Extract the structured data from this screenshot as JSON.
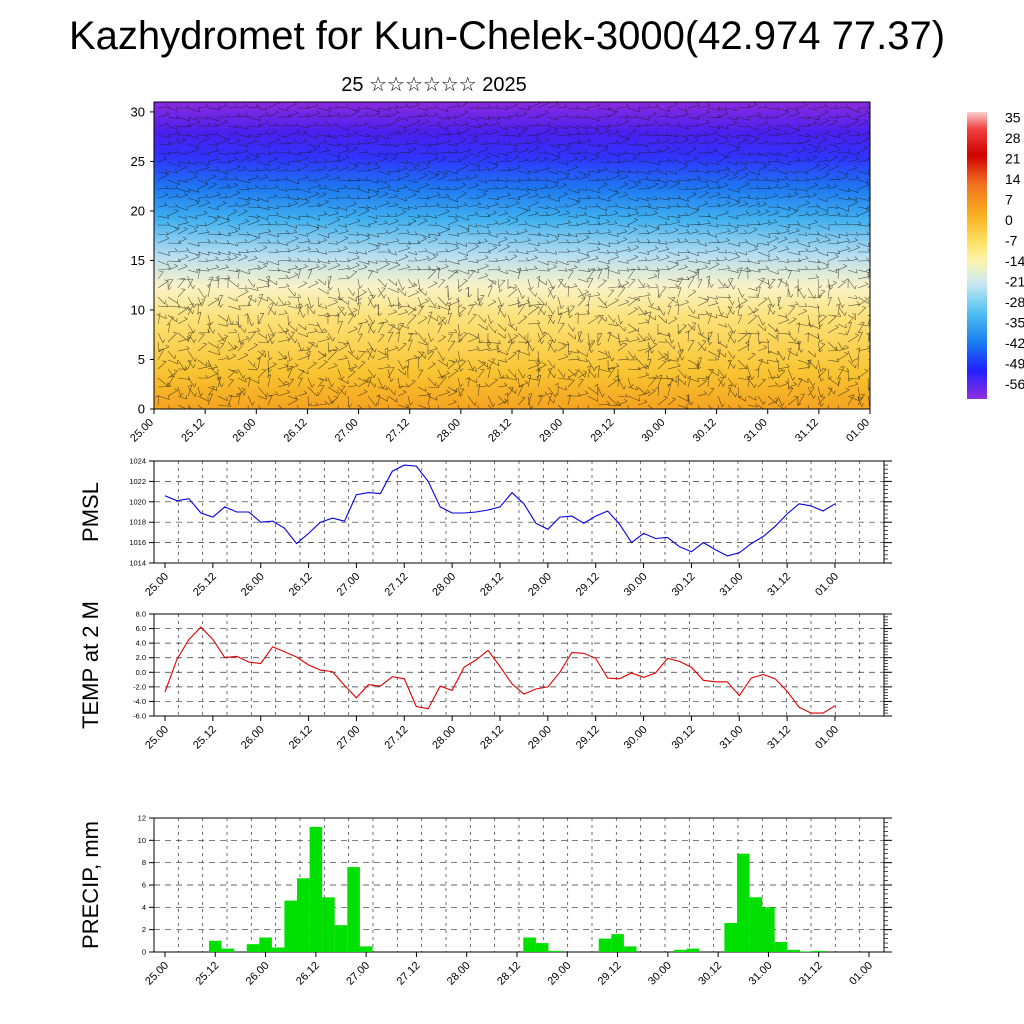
{
  "title": "Kazhydromet for Kun-Chelek-3000(42.974 77.37)",
  "subtitle": "25 ☆☆☆☆☆☆ 2025",
  "chart_data": [
    {
      "type": "heatmap",
      "panel": "cross-section",
      "x_tick_labels": [
        "25.00",
        "25.12",
        "26.00",
        "26.12",
        "27.00",
        "27.12",
        "28.00",
        "28.12",
        "29.00",
        "29.12",
        "30.00",
        "30.12",
        "31.00",
        "31.12",
        "01.00"
      ],
      "ylim": [
        0,
        31
      ],
      "y_ticks": [
        0,
        5,
        10,
        15,
        20,
        25,
        30
      ],
      "colorbar_labels": [
        "35",
        "28",
        "21",
        "14",
        "7",
        "0",
        "-7",
        "-14",
        "-21",
        "-28",
        "-35",
        "-42",
        "-49",
        "-56"
      ],
      "colors": [
        "#7a1fe0",
        "#3a30ff",
        "#1f73f5",
        "#3fb2f0",
        "#bfe2f2",
        "#fbf4b0",
        "#fddc5c",
        "#f9c028",
        "#f59f1c"
      ]
    },
    {
      "type": "line",
      "panel": "pmsl",
      "ylabel": "PMSL",
      "ylim": [
        1014,
        1024
      ],
      "y_tick_labels": [
        "1014",
        "1016",
        "1018",
        "1020",
        "1022",
        "1024"
      ],
      "color": "#0000e0",
      "values": [
        1020.6,
        1020.1,
        1020.3,
        1018.9,
        1018.5,
        1019.5,
        1019.0,
        1019.0,
        1018.0,
        1018.1,
        1017.4,
        1015.9,
        1016.9,
        1018.0,
        1018.4,
        1018.1,
        1020.7,
        1020.9,
        1020.8,
        1023.0,
        1023.6,
        1023.5,
        1022.0,
        1019.5,
        1018.9,
        1018.9,
        1019.0,
        1019.2,
        1019.5,
        1020.9,
        1019.8,
        1017.9,
        1017.3,
        1018.5,
        1018.6,
        1017.9,
        1018.6,
        1019.1,
        1017.8,
        1016.0,
        1016.9,
        1016.4,
        1016.5,
        1015.6,
        1015.1,
        1016.0,
        1015.3,
        1014.7,
        1015.0,
        1015.9,
        1016.6,
        1017.6,
        1018.8,
        1019.8,
        1019.6,
        1019.1,
        1019.8
      ]
    },
    {
      "type": "line",
      "panel": "temp",
      "ylabel": "TEMP at 2 M",
      "ylim": [
        -6,
        8
      ],
      "y_tick_labels": [
        "8.0",
        "6.0",
        "4.0",
        "2.0",
        "0.0",
        "-2.0",
        "-4.0",
        "-6.0"
      ],
      "color": "#e00000",
      "values": [
        -2.7,
        1.8,
        4.5,
        6.2,
        4.5,
        2.0,
        2.2,
        1.4,
        1.2,
        3.5,
        2.8,
        2.1,
        1.0,
        0.3,
        0.1,
        -1.8,
        -3.5,
        -1.7,
        -1.9,
        -0.6,
        -0.9,
        -4.7,
        -5.0,
        -1.9,
        -2.5,
        0.7,
        1.7,
        3.0,
        0.8,
        -1.6,
        -3.0,
        -2.3,
        -2.0,
        0.0,
        2.7,
        2.6,
        1.9,
        -0.8,
        -0.9,
        -0.1,
        -0.7,
        -0.1,
        1.9,
        1.5,
        0.7,
        -1.1,
        -1.3,
        -1.3,
        -3.2,
        -0.8,
        -0.3,
        -0.9,
        -2.6,
        -4.8,
        -5.6,
        -5.6,
        -4.6
      ]
    },
    {
      "type": "bar",
      "panel": "precip",
      "ylabel": "PRECIP, mm",
      "ylim": [
        0,
        12
      ],
      "y_tick_labels": [
        "0",
        "2",
        "4",
        "6",
        "8",
        "10",
        "12"
      ],
      "color": "#00e000",
      "values": [
        0,
        0,
        0,
        0,
        1.0,
        0.3,
        0,
        0.7,
        1.3,
        0.4,
        4.6,
        6.6,
        11.2,
        4.9,
        2.4,
        7.6,
        0.5,
        0,
        0,
        0,
        0,
        0,
        0,
        0,
        0,
        0,
        0,
        0,
        0,
        1.3,
        0.8,
        0.1,
        0,
        0,
        0,
        1.2,
        1.6,
        0.5,
        0,
        0,
        0,
        0.2,
        0.3,
        0,
        0,
        2.6,
        8.8,
        4.9,
        4.0,
        0.9,
        0.2,
        0.05,
        0.1,
        0,
        0,
        0,
        0
      ]
    }
  ]
}
